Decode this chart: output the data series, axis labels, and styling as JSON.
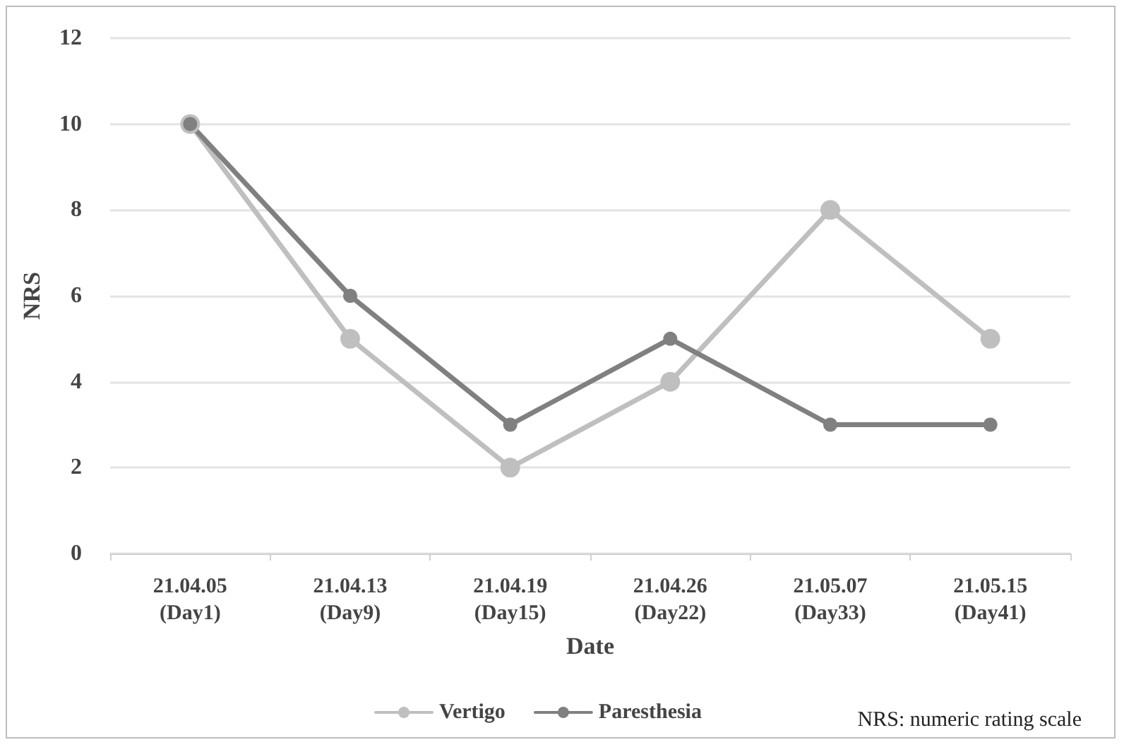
{
  "chart_data": {
    "type": "line",
    "xlabel": "Date",
    "ylabel": "NRS",
    "categories": [
      "21.04.05\n(Day1)",
      "21.04.13\n(Day9)",
      "21.04.19\n(Day15)",
      "21.04.26\n(Day22)",
      "21.05.07\n(Day33)",
      "21.05.15\n(Day41)"
    ],
    "series": [
      {
        "name": "Vertigo",
        "color": "#bfbfbf",
        "values": [
          10,
          5,
          2,
          4,
          8,
          5
        ]
      },
      {
        "name": "Paresthesia",
        "color": "#808080",
        "values": [
          10,
          6,
          3,
          5,
          3,
          3
        ]
      }
    ],
    "ylim": [
      0,
      12
    ],
    "yticks": [
      0,
      2,
      4,
      6,
      8,
      10,
      12
    ],
    "grid": "y",
    "legend": "bottom",
    "marker": "circle",
    "line_style": "solid",
    "annotations": [
      "NRS: numeric rating scale"
    ]
  }
}
